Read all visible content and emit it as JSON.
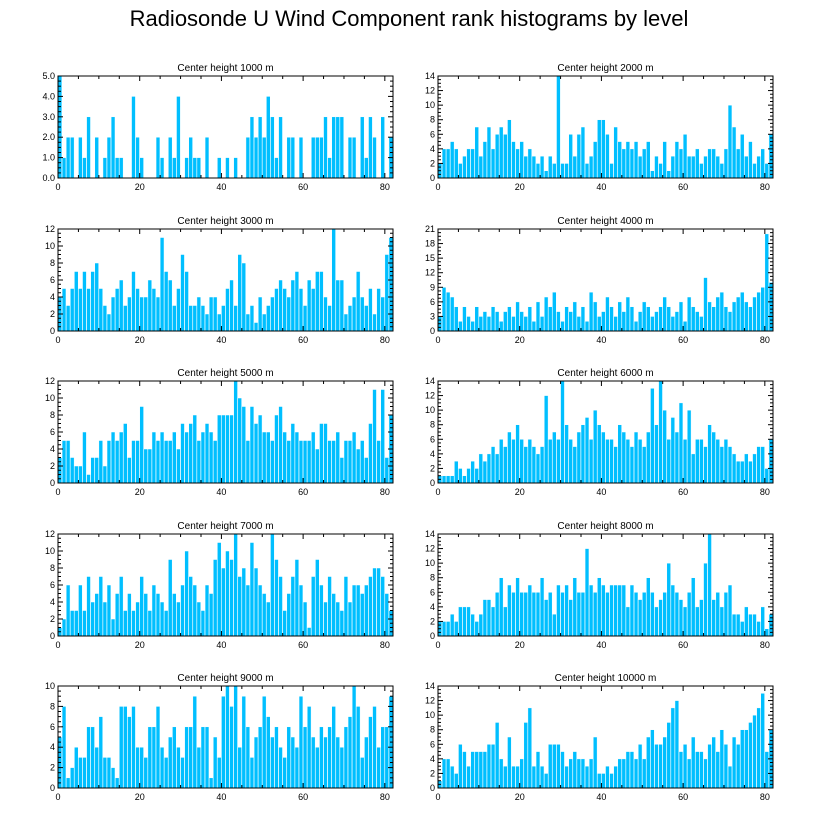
{
  "title": "Radiosonde U Wind Component rank histograms by level",
  "colors": {
    "bar": "#00BFFF",
    "bar_edge": "#ffffff",
    "axis": "#000000"
  },
  "chart_data": [
    {
      "type": "bar",
      "title": "Center height 1000 m",
      "xlim": [
        0,
        82
      ],
      "ylim": [
        0,
        5
      ],
      "xticks": [
        0,
        20,
        40,
        60,
        80
      ],
      "yticks": [
        0,
        1,
        2,
        3,
        4,
        5
      ],
      "yticklabels": [
        "0.0",
        "1.0",
        "2.0",
        "3.0",
        "4.0",
        "5.0"
      ],
      "values": [
        5,
        1,
        2,
        2,
        0,
        2,
        1,
        3,
        0,
        2,
        0,
        1,
        2,
        3,
        1,
        1,
        0,
        0,
        4,
        2,
        1,
        0,
        0,
        0,
        2,
        1,
        0,
        2,
        1,
        4,
        0,
        1,
        2,
        1,
        1,
        0,
        2,
        0,
        0,
        1,
        0,
        1,
        0,
        1,
        0,
        0,
        2,
        3,
        2,
        3,
        2,
        4,
        3,
        1,
        3,
        0,
        2,
        2,
        0,
        2,
        0,
        0,
        2,
        2,
        2,
        3,
        1,
        3,
        3,
        3,
        0,
        2,
        2,
        0,
        3,
        1,
        3,
        2,
        0,
        3,
        0,
        2
      ]
    },
    {
      "type": "bar",
      "title": "Center height 2000 m",
      "xlim": [
        0,
        82
      ],
      "ylim": [
        0,
        14
      ],
      "xticks": [
        0,
        20,
        40,
        60,
        80
      ],
      "yticks": [
        0,
        2,
        4,
        6,
        8,
        10,
        12,
        14
      ],
      "yticklabels": [
        "0",
        "2",
        "4",
        "6",
        "8",
        "10",
        "12",
        "14"
      ],
      "values": [
        2,
        4,
        4,
        5,
        4,
        2,
        3,
        4,
        4,
        7,
        3,
        5,
        7,
        4,
        6,
        7,
        6,
        8,
        5,
        4,
        5,
        3,
        4,
        3,
        2,
        3,
        1,
        3,
        2,
        14,
        2,
        2,
        6,
        3,
        6,
        7,
        2,
        3,
        5,
        8,
        8,
        6,
        2,
        7,
        5,
        4,
        5,
        4,
        5,
        3,
        4,
        5,
        1,
        3,
        2,
        5,
        1,
        3,
        5,
        4,
        6,
        3,
        3,
        4,
        2,
        3,
        4,
        4,
        3,
        2,
        4,
        10,
        7,
        4,
        6,
        3,
        5,
        2,
        3,
        4,
        2,
        6
      ]
    },
    {
      "type": "bar",
      "title": "Center height 3000 m",
      "xlim": [
        0,
        82
      ],
      "ylim": [
        0,
        12
      ],
      "xticks": [
        0,
        20,
        40,
        60,
        80
      ],
      "yticks": [
        0,
        2,
        4,
        6,
        8,
        10,
        12
      ],
      "yticklabels": [
        "0",
        "2",
        "4",
        "6",
        "8",
        "10",
        "12"
      ],
      "values": [
        4,
        5,
        3,
        5,
        7,
        5,
        7,
        5,
        7,
        8,
        5,
        3,
        2,
        4,
        5,
        6,
        3,
        4,
        7,
        5,
        4,
        4,
        6,
        5,
        4,
        11,
        7,
        6,
        3,
        5,
        9,
        7,
        3,
        3,
        4,
        3,
        2,
        4,
        4,
        2,
        3,
        5,
        6,
        3,
        9,
        8,
        2,
        3,
        1,
        4,
        2,
        3,
        4,
        5,
        6,
        5,
        4,
        6,
        7,
        5,
        3,
        6,
        5,
        7,
        7,
        4,
        3,
        12,
        6,
        6,
        2,
        3,
        4,
        7,
        4,
        3,
        5,
        2,
        5,
        4,
        9,
        11
      ]
    },
    {
      "type": "bar",
      "title": "Center height 4000 m",
      "xlim": [
        0,
        82
      ],
      "ylim": [
        0,
        21
      ],
      "xticks": [
        0,
        20,
        40,
        60,
        80
      ],
      "yticks": [
        0,
        3,
        6,
        9,
        12,
        15,
        18,
        21
      ],
      "yticklabels": [
        "0",
        "3",
        "6",
        "9",
        "12",
        "15",
        "18",
        "21"
      ],
      "values": [
        3,
        9,
        8,
        7,
        5,
        2,
        5,
        3,
        2,
        5,
        3,
        4,
        3,
        5,
        4,
        2,
        4,
        5,
        3,
        6,
        4,
        3,
        5,
        2,
        6,
        3,
        7,
        5,
        8,
        4,
        2,
        5,
        4,
        6,
        3,
        5,
        2,
        8,
        6,
        3,
        4,
        7,
        5,
        3,
        6,
        4,
        7,
        5,
        2,
        4,
        6,
        5,
        3,
        4,
        5,
        7,
        5,
        3,
        4,
        6,
        2,
        7,
        5,
        4,
        3,
        11,
        6,
        5,
        7,
        8,
        5,
        4,
        6,
        7,
        8,
        6,
        5,
        7,
        8,
        9,
        20,
        10
      ]
    },
    {
      "type": "bar",
      "title": "Center height 5000 m",
      "xlim": [
        0,
        82
      ],
      "ylim": [
        0,
        12
      ],
      "xticks": [
        0,
        20,
        40,
        60,
        80
      ],
      "yticks": [
        0,
        2,
        4,
        6,
        8,
        10,
        12
      ],
      "yticklabels": [
        "0",
        "2",
        "4",
        "6",
        "8",
        "10",
        "12"
      ],
      "values": [
        3,
        5,
        5,
        3,
        2,
        2,
        6,
        1,
        3,
        3,
        5,
        2,
        5,
        6,
        5,
        6,
        7,
        3,
        5,
        5,
        9,
        4,
        4,
        6,
        5,
        6,
        5,
        5,
        6,
        4,
        7,
        6,
        7,
        8,
        5,
        6,
        7,
        6,
        5,
        8,
        8,
        8,
        8,
        12,
        10,
        9,
        5,
        9,
        7,
        8,
        6,
        6,
        5,
        8,
        9,
        6,
        5,
        7,
        6,
        5,
        5,
        5,
        6,
        4,
        7,
        7,
        5,
        5,
        6,
        3,
        5,
        5,
        6,
        4,
        5,
        3,
        7,
        11,
        5,
        11,
        3,
        8
      ]
    },
    {
      "type": "bar",
      "title": "Center height 6000 m",
      "xlim": [
        0,
        82
      ],
      "ylim": [
        0,
        14
      ],
      "xticks": [
        0,
        20,
        40,
        60,
        80
      ],
      "yticks": [
        0,
        2,
        4,
        6,
        8,
        10,
        12,
        14
      ],
      "yticklabels": [
        "0",
        "2",
        "4",
        "6",
        "8",
        "10",
        "12",
        "14"
      ],
      "values": [
        1,
        1,
        1,
        1,
        3,
        2,
        1,
        2,
        3,
        2,
        4,
        3,
        4,
        5,
        4,
        6,
        5,
        7,
        6,
        8,
        6,
        5,
        6,
        5,
        4,
        5,
        12,
        6,
        7,
        6,
        14,
        8,
        6,
        5,
        7,
        8,
        9,
        6,
        10,
        8,
        7,
        6,
        6,
        5,
        8,
        7,
        6,
        5,
        7,
        6,
        5,
        7,
        13,
        8,
        14,
        10,
        6,
        9,
        7,
        11,
        6,
        10,
        4,
        6,
        6,
        5,
        8,
        7,
        6,
        5,
        6,
        5,
        4,
        3,
        3,
        4,
        3,
        4,
        5,
        5,
        2,
        6
      ]
    },
    {
      "type": "bar",
      "title": "Center height 7000 m",
      "xlim": [
        0,
        82
      ],
      "ylim": [
        0,
        12
      ],
      "xticks": [
        0,
        20,
        40,
        60,
        80
      ],
      "yticks": [
        0,
        2,
        4,
        6,
        8,
        10,
        12
      ],
      "yticklabels": [
        "0",
        "2",
        "4",
        "6",
        "8",
        "10",
        "12"
      ],
      "values": [
        1,
        2,
        6,
        3,
        3,
        6,
        3,
        7,
        4,
        5,
        7,
        4,
        6,
        2,
        5,
        7,
        3,
        5,
        3,
        4,
        7,
        5,
        3,
        6,
        5,
        4,
        3,
        9,
        5,
        4,
        6,
        10,
        7,
        6,
        4,
        3,
        6,
        5,
        9,
        11,
        8,
        10,
        9,
        12,
        7,
        8,
        6,
        11,
        8,
        6,
        5,
        4,
        12,
        9,
        7,
        3,
        5,
        7,
        9,
        6,
        4,
        1,
        7,
        9,
        6,
        4,
        7,
        5,
        4,
        3,
        7,
        4,
        6,
        6,
        5,
        6,
        7,
        8,
        8,
        7,
        5,
        3
      ]
    },
    {
      "type": "bar",
      "title": "Center height 8000 m",
      "xlim": [
        0,
        82
      ],
      "ylim": [
        0,
        14
      ],
      "xticks": [
        0,
        20,
        40,
        60,
        80
      ],
      "yticks": [
        0,
        2,
        4,
        6,
        8,
        10,
        12,
        14
      ],
      "yticklabels": [
        "0",
        "2",
        "4",
        "6",
        "8",
        "10",
        "12",
        "14"
      ],
      "values": [
        2,
        2,
        2,
        3,
        2,
        4,
        4,
        4,
        3,
        2,
        3,
        5,
        5,
        4,
        6,
        8,
        4,
        7,
        6,
        8,
        6,
        6,
        7,
        6,
        6,
        8,
        5,
        6,
        3,
        7,
        6,
        7,
        5,
        8,
        6,
        6,
        12,
        7,
        6,
        8,
        7,
        6,
        7,
        7,
        7,
        7,
        4,
        7,
        6,
        5,
        6,
        8,
        6,
        4,
        5,
        6,
        10,
        7,
        6,
        5,
        4,
        6,
        8,
        4,
        5,
        10,
        14,
        5,
        6,
        4,
        6,
        7,
        3,
        3,
        2,
        4,
        3,
        3,
        2,
        4,
        1,
        3
      ]
    },
    {
      "type": "bar",
      "title": "Center height 9000 m",
      "xlim": [
        0,
        82
      ],
      "ylim": [
        0,
        10
      ],
      "xticks": [
        0,
        20,
        40,
        60,
        80
      ],
      "yticks": [
        0,
        2,
        4,
        6,
        8,
        10
      ],
      "yticklabels": [
        "0",
        "2",
        "4",
        "6",
        "8",
        "10"
      ],
      "values": [
        5,
        8,
        1,
        2,
        4,
        3,
        3,
        6,
        6,
        4,
        7,
        3,
        3,
        2,
        1,
        8,
        8,
        7,
        8,
        4,
        4,
        3,
        6,
        6,
        8,
        4,
        3,
        5,
        6,
        4,
        3,
        6,
        6,
        9,
        4,
        6,
        6,
        1,
        5,
        3,
        9,
        10,
        8,
        10,
        4,
        9,
        6,
        3,
        5,
        6,
        9,
        7,
        5,
        6,
        4,
        3,
        6,
        5,
        4,
        9,
        6,
        8,
        5,
        4,
        6,
        5,
        6,
        8,
        5,
        4,
        6,
        7,
        10,
        8,
        3,
        5,
        7,
        8,
        4,
        6,
        6,
        9
      ]
    },
    {
      "type": "bar",
      "title": "Center height 10000 m",
      "xlim": [
        0,
        82
      ],
      "ylim": [
        0,
        14
      ],
      "xticks": [
        0,
        20,
        40,
        60,
        80
      ],
      "yticks": [
        0,
        2,
        4,
        6,
        8,
        10,
        12,
        14
      ],
      "yticklabels": [
        "0",
        "2",
        "4",
        "6",
        "8",
        "10",
        "12",
        "14"
      ],
      "values": [
        1,
        4,
        4,
        3,
        2,
        6,
        5,
        3,
        5,
        5,
        5,
        5,
        6,
        6,
        9,
        4,
        3,
        7,
        3,
        3,
        4,
        9,
        11,
        3,
        5,
        3,
        2,
        6,
        6,
        6,
        5,
        3,
        4,
        5,
        4,
        4,
        3,
        4,
        7,
        2,
        2,
        3,
        2,
        3,
        4,
        4,
        5,
        5,
        4,
        6,
        4,
        7,
        8,
        6,
        6,
        7,
        9,
        11,
        12,
        5,
        6,
        4,
        7,
        5,
        5,
        4,
        6,
        7,
        5,
        8,
        6,
        3,
        7,
        6,
        8,
        8,
        9,
        10,
        11,
        13,
        5,
        8
      ]
    }
  ]
}
